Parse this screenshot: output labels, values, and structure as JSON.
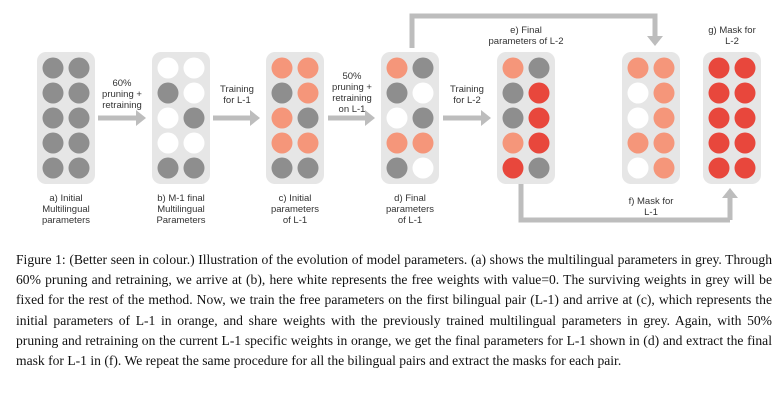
{
  "colors": {
    "grey": "#8e8e8e",
    "white": "#ffffff",
    "orange": "#f5967a",
    "red": "#e8473c",
    "panel": "#e6e6e6",
    "arrow": "#bdbdbd"
  },
  "stages": [
    {
      "id": "a",
      "label": "a) Initial\nMultilingual\nparameters",
      "grid": [
        "G",
        "G",
        "G",
        "G",
        "G",
        "G",
        "G",
        "G",
        "G",
        "G"
      ]
    },
    {
      "id": "b",
      "label": "b) M-1 final\nMultilingual\nParameters",
      "grid": [
        "W",
        "W",
        "G",
        "W",
        "W",
        "G",
        "W",
        "W",
        "G",
        "G"
      ]
    },
    {
      "id": "c",
      "label": "c) Initial\nparameters\nof L-1",
      "grid": [
        "O",
        "O",
        "G",
        "O",
        "O",
        "G",
        "O",
        "O",
        "G",
        "G"
      ]
    },
    {
      "id": "d",
      "label": "d) Final\nparameters\nof L-1",
      "grid": [
        "O",
        "G",
        "G",
        "W",
        "W",
        "G",
        "O",
        "O",
        "G",
        "W"
      ]
    },
    {
      "id": "e",
      "label": "e) Final\nparameters of L-2",
      "grid": [
        "O",
        "G",
        "G",
        "R",
        "G",
        "R",
        "O",
        "R",
        "R",
        "G"
      ]
    },
    {
      "id": "f",
      "label": "f) Mask for\nL-1",
      "grid": [
        "O",
        "O",
        "W",
        "O",
        "W",
        "O",
        "O",
        "O",
        "W",
        "O"
      ]
    },
    {
      "id": "g",
      "label": "g) Mask for\nL-2",
      "grid": [
        "R",
        "R",
        "R",
        "R",
        "R",
        "R",
        "R",
        "R",
        "R",
        "R"
      ]
    }
  ],
  "transitions": [
    {
      "from": "a",
      "to": "b",
      "label": "60%\npruning +\nretraining"
    },
    {
      "from": "b",
      "to": "c",
      "label": "Training\nfor L-1"
    },
    {
      "from": "c",
      "to": "d",
      "label": "50%\npruning +\nretraining\non L-1"
    },
    {
      "from": "d",
      "to": "e",
      "label": "Training\nfor L-2"
    }
  ],
  "caption": "Figure 1: (Better seen in colour.) Illustration of the evolution of model parameters. (a) shows the multilingual parameters in grey. Through 60% pruning and retraining, we arrive at (b), here white represents the free weights with value=0. The surviving weights in grey will be fixed for the rest of the method. Now, we train the free parameters on the first bilingual pair (L-1) and arrive at (c), which represents the initial parameters of L-1 in orange, and share weights with the previously trained multilingual parameters in grey. Again, with 50% pruning and retraining on the current L-1 specific weights in orange, we get the final parameters for L-1 shown in (d) and extract the final mask for L-1 in (f). We repeat the same procedure for all the bilingual pairs and extract the masks for each pair."
}
